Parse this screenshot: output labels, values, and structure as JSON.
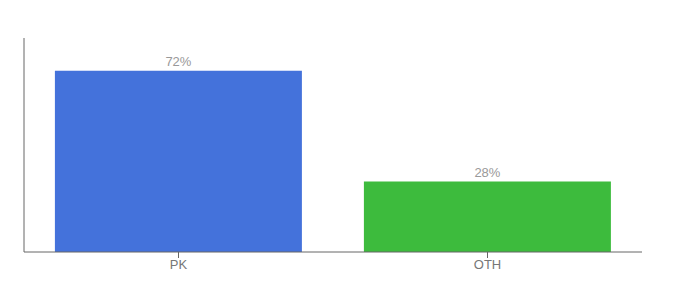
{
  "chart_data": {
    "type": "bar",
    "categories": [
      "PK",
      "OTH"
    ],
    "values": [
      72,
      28
    ],
    "value_labels": [
      "72%",
      "28%"
    ],
    "data_labels": true,
    "colors": [
      "#4472db",
      "#3dbb3d"
    ],
    "ylim": [
      0,
      85
    ],
    "grid": false,
    "tick_labels": "x"
  }
}
